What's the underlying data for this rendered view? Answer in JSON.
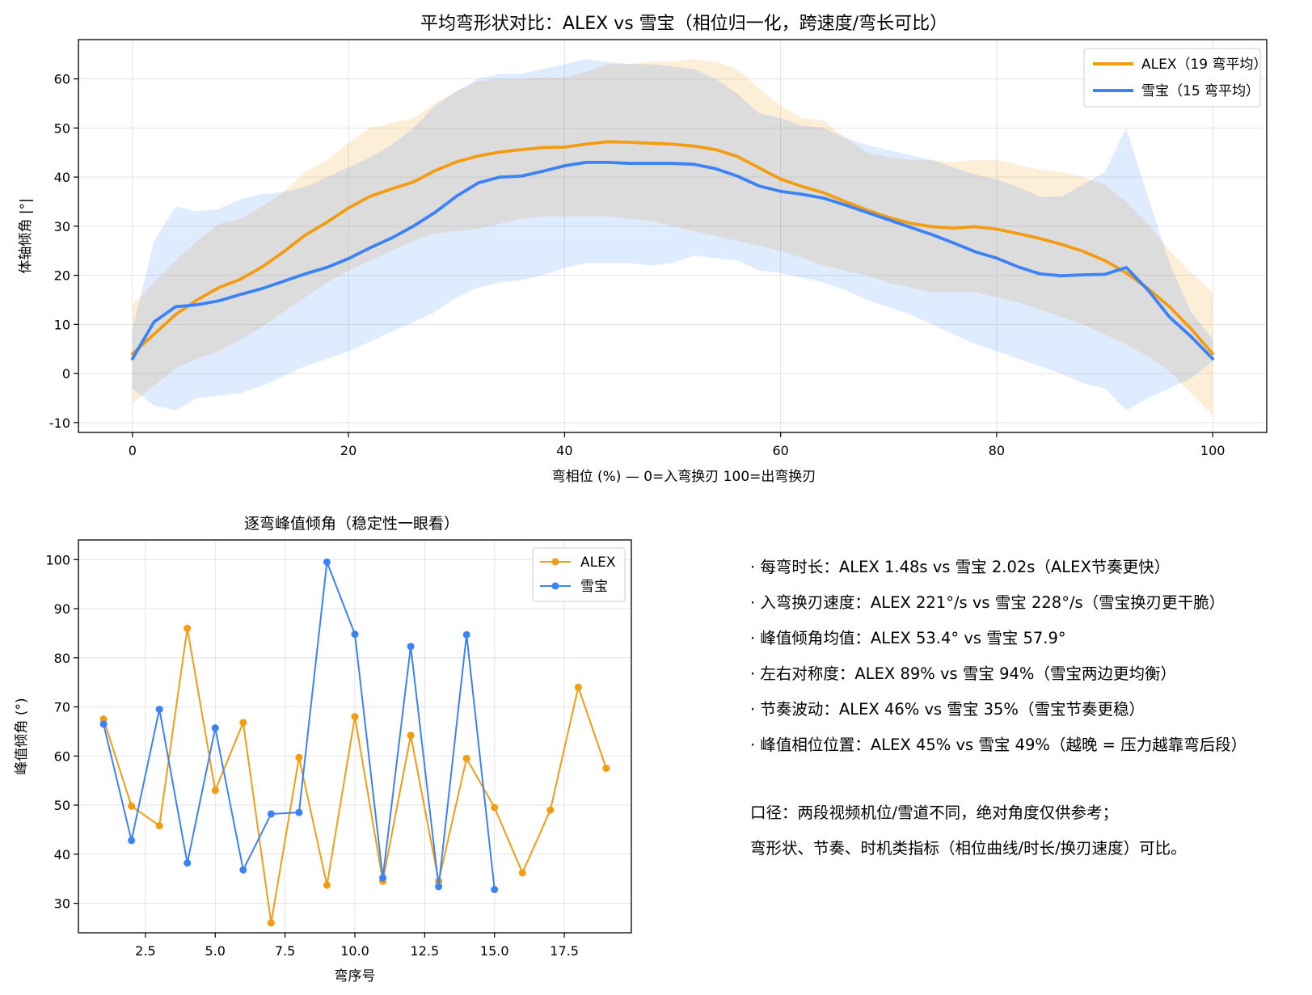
{
  "chart_data": [
    {
      "type": "line",
      "title": "平均弯形状对比：ALEX vs 雪宝（相位归一化，跨速度/弯长可比）",
      "xlabel": "弯相位 (%)  —  0=入弯换刃  100=出弯换刃",
      "ylabel": "体轴倾角 |°|",
      "xlim": [
        -5,
        105
      ],
      "ylim": [
        -12,
        68
      ],
      "xticks": [
        0,
        20,
        40,
        60,
        80,
        100
      ],
      "yticks": [
        -10,
        0,
        10,
        20,
        30,
        40,
        50,
        60
      ],
      "grid": true,
      "legend_position": "top-right",
      "x": [
        0,
        2,
        4,
        6,
        8,
        10,
        12,
        14,
        16,
        18,
        20,
        22,
        24,
        26,
        28,
        30,
        32,
        34,
        36,
        38,
        40,
        42,
        44,
        46,
        48,
        50,
        52,
        54,
        56,
        58,
        60,
        62,
        64,
        66,
        68,
        70,
        72,
        74,
        76,
        78,
        80,
        82,
        84,
        86,
        88,
        90,
        92,
        94,
        96,
        98,
        100
      ],
      "series": [
        {
          "name": "ALEX（19 弯平均）",
          "color": "#f39c12",
          "values": [
            4,
            8,
            12,
            15,
            17.5,
            19.2,
            21.7,
            24.8,
            28.2,
            30.8,
            33.7,
            36.1,
            37.6,
            39.0,
            41.3,
            43.1,
            44.3,
            45.1,
            45.6,
            46.0,
            46.1,
            46.7,
            47.2,
            47.1,
            46.9,
            46.7,
            46.3,
            45.6,
            44.2,
            41.9,
            39.6,
            38.1,
            36.8,
            35.0,
            33.3,
            31.8,
            30.6,
            29.9,
            29.6,
            29.9,
            29.4,
            28.5,
            27.5,
            26.3,
            24.9,
            23.0,
            20.5,
            17.3,
            13.6,
            9.1,
            4.0
          ],
          "band_upper": [
            14,
            18.5,
            23,
            27,
            30.5,
            31.5,
            34,
            37,
            41,
            43.5,
            47,
            50,
            51,
            52,
            55,
            57.5,
            59.5,
            60,
            60,
            60.3,
            60.2,
            61.5,
            63,
            63,
            63.5,
            63.5,
            64,
            63.5,
            62,
            58,
            54.5,
            52,
            51.5,
            48,
            45,
            44,
            43.5,
            43.5,
            43,
            43.5,
            43.5,
            42.5,
            41.5,
            41,
            40,
            38.5,
            35,
            30.5,
            25,
            20.5,
            16.5
          ],
          "band_lower": [
            -6,
            -2.5,
            1,
            3,
            4.5,
            7,
            9.5,
            12.5,
            15.5,
            18.5,
            21,
            23,
            25,
            27,
            28.5,
            29,
            29.5,
            30.5,
            31.5,
            32,
            32,
            32,
            32,
            31.5,
            31,
            30,
            29,
            28,
            27,
            26,
            25,
            23.5,
            22,
            21,
            20,
            18.5,
            17.5,
            16.5,
            16.5,
            16.5,
            15.5,
            14.5,
            13,
            11.5,
            10,
            8,
            6,
            3.5,
            0.5,
            -4,
            -8.5
          ]
        },
        {
          "name": "雪宝（15 弯平均）",
          "color": "#3b82f6",
          "values": [
            3.0,
            10.5,
            13.6,
            14.0,
            14.8,
            16.1,
            17.3,
            18.8,
            20.3,
            21.6,
            23.4,
            25.6,
            27.6,
            30.0,
            32.8,
            36.1,
            38.8,
            40.0,
            40.2,
            41.2,
            42.3,
            43.0,
            43.0,
            42.8,
            42.8,
            42.8,
            42.6,
            41.7,
            40.2,
            38.2,
            37.1,
            36.5,
            35.7,
            34.3,
            32.8,
            31.3,
            29.8,
            28.3,
            26.6,
            24.8,
            23.5,
            21.7,
            20.3,
            19.9,
            20.1,
            20.2,
            21.6,
            17.0,
            11.5,
            7.5,
            3.0
          ],
          "band_upper": [
            9,
            27,
            34,
            33,
            33.5,
            35.5,
            36.5,
            37,
            38,
            40,
            42,
            44,
            46.5,
            50,
            54.5,
            57.5,
            60,
            61,
            61,
            62,
            63,
            64,
            63.5,
            63,
            63,
            62.5,
            62,
            60,
            57,
            53,
            52,
            50.5,
            50,
            48,
            46.5,
            45.5,
            44.5,
            43.5,
            42,
            40.5,
            39.5,
            38,
            36,
            36,
            38.5,
            41,
            50,
            36,
            22.5,
            12.5,
            7
          ],
          "band_lower": [
            -3,
            -6.5,
            -7.5,
            -5,
            -4.5,
            -4,
            -2.5,
            -0.5,
            1.5,
            3,
            4.5,
            6.5,
            8.5,
            10.5,
            12.5,
            15.5,
            17.5,
            18.5,
            19,
            20,
            21.5,
            22.5,
            22.5,
            22.5,
            22,
            22.5,
            24,
            23.5,
            23,
            21,
            20.5,
            19.5,
            18.5,
            17,
            15,
            13.5,
            12,
            10,
            8,
            6,
            4.5,
            3,
            1.5,
            0,
            -2,
            -3,
            -7.5,
            -5,
            -3,
            -1,
            2.5
          ]
        }
      ]
    },
    {
      "type": "line",
      "title": "逐弯峰值倾角（稳定性一眼看）",
      "xlabel": "弯序号",
      "ylabel": "峰值倾角 (°)",
      "xlim": [
        0.1,
        19.9
      ],
      "ylim": [
        24,
        104
      ],
      "xticks": [
        2.5,
        5.0,
        7.5,
        10.0,
        12.5,
        15.0,
        17.5
      ],
      "xtick_labels": [
        "2.5",
        "5.0",
        "7.5",
        "10.0",
        "12.5",
        "15.0",
        "17.5"
      ],
      "yticks": [
        30,
        40,
        50,
        60,
        70,
        80,
        90,
        100
      ],
      "grid": true,
      "legend_position": "top-right",
      "series": [
        {
          "name": "ALEX",
          "color": "#f39c12",
          "x": [
            1,
            2,
            3,
            4,
            5,
            6,
            7,
            8,
            9,
            10,
            11,
            12,
            13,
            14,
            15,
            16,
            17,
            18,
            19
          ],
          "values": [
            67.5,
            49.8,
            45.8,
            86,
            53,
            66.8,
            26,
            59.7,
            33.7,
            68,
            34.5,
            64.2,
            34.5,
            59.5,
            49.5,
            36.2,
            49,
            74,
            57.5
          ]
        },
        {
          "name": "雪宝",
          "color": "#3b82f6",
          "x": [
            1,
            2,
            3,
            4,
            5,
            6,
            7,
            8,
            9,
            10,
            11,
            12,
            13,
            14,
            15
          ],
          "values": [
            66.5,
            42.8,
            69.5,
            38.2,
            65.7,
            36.8,
            48.2,
            48.5,
            99.5,
            84.8,
            35.2,
            82.3,
            33.4,
            84.7,
            32.8
          ]
        }
      ]
    }
  ],
  "notes": [
    "· 每弯时长：ALEX 1.48s vs 雪宝 2.02s（ALEX节奏更快）",
    "· 入弯换刃速度：ALEX 221°/s vs 雪宝 228°/s（雪宝换刃更干脆）",
    "· 峰值倾角均值：ALEX 53.4° vs 雪宝 57.9°",
    "· 左右对称度：ALEX 89% vs 雪宝 94%（雪宝两边更均衡）",
    "· 节奏波动：ALEX 46% vs 雪宝 35%（雪宝节奏更稳）",
    "· 峰值相位位置：ALEX 45% vs 雪宝 49%（越晚 = 压力越靠弯后段）"
  ],
  "caveats": [
    "口径：两段视频机位/雪道不同，绝对角度仅供参考；",
    "弯形状、节奏、时机类指标（相位曲线/时长/换刃速度）可比。"
  ]
}
